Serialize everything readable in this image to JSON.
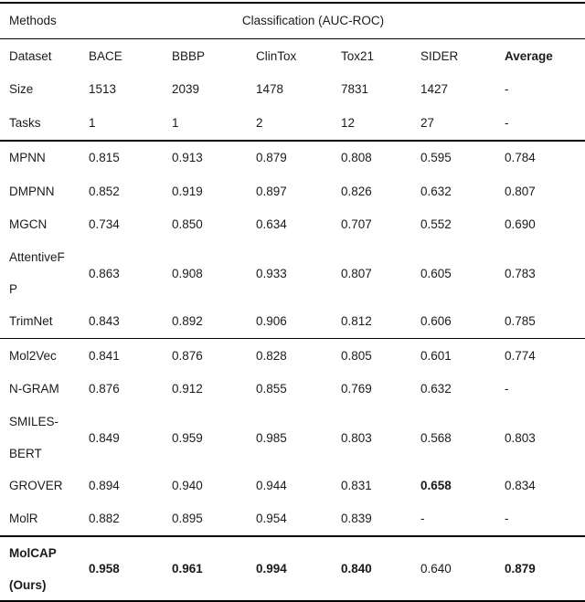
{
  "header": {
    "methods": "Methods",
    "classification": "Classification (AUC-ROC)"
  },
  "sections": [
    {
      "name": "dataset-info",
      "rows": [
        {
          "label_lines": [
            "Dataset"
          ],
          "cells": [
            {
              "t": "BACE"
            },
            {
              "t": "BBBP"
            },
            {
              "t": "ClinTox"
            },
            {
              "t": "Tox21"
            },
            {
              "t": "SIDER"
            },
            {
              "t": "Average",
              "b": true
            }
          ]
        },
        {
          "label_lines": [
            "Size"
          ],
          "cells": [
            {
              "t": "1513"
            },
            {
              "t": "2039"
            },
            {
              "t": "1478"
            },
            {
              "t": "7831"
            },
            {
              "t": "1427"
            },
            {
              "t": "-"
            }
          ]
        },
        {
          "label_lines": [
            "Tasks"
          ],
          "cells": [
            {
              "t": "1"
            },
            {
              "t": "1"
            },
            {
              "t": "2"
            },
            {
              "t": "12"
            },
            {
              "t": "27"
            },
            {
              "t": "-"
            }
          ]
        }
      ]
    },
    {
      "name": "supervised-graph-models",
      "rows": [
        {
          "label_lines": [
            "MPNN"
          ],
          "cells": [
            {
              "t": "0.815"
            },
            {
              "t": "0.913"
            },
            {
              "t": "0.879"
            },
            {
              "t": "0.808"
            },
            {
              "t": "0.595"
            },
            {
              "t": "0.784"
            }
          ]
        },
        {
          "label_lines": [
            "DMPNN"
          ],
          "cells": [
            {
              "t": "0.852"
            },
            {
              "t": "0.919"
            },
            {
              "t": "0.897"
            },
            {
              "t": "0.826"
            },
            {
              "t": "0.632"
            },
            {
              "t": "0.807"
            }
          ]
        },
        {
          "label_lines": [
            "MGCN"
          ],
          "cells": [
            {
              "t": "0.734"
            },
            {
              "t": "0.850"
            },
            {
              "t": "0.634"
            },
            {
              "t": "0.707"
            },
            {
              "t": "0.552"
            },
            {
              "t": "0.690"
            }
          ]
        },
        {
          "label_lines": [
            "AttentiveF",
            "P"
          ],
          "tall": true,
          "cells": [
            {
              "t": "0.863"
            },
            {
              "t": "0.908"
            },
            {
              "t": "0.933"
            },
            {
              "t": "0.807"
            },
            {
              "t": "0.605"
            },
            {
              "t": "0.783"
            }
          ]
        },
        {
          "label_lines": [
            "TrimNet"
          ],
          "cells": [
            {
              "t": "0.843"
            },
            {
              "t": "0.892"
            },
            {
              "t": "0.906"
            },
            {
              "t": "0.812"
            },
            {
              "t": "0.606"
            },
            {
              "t": "0.785"
            }
          ]
        }
      ]
    },
    {
      "name": "pretrained-models",
      "rows": [
        {
          "label_lines": [
            "Mol2Vec"
          ],
          "cells": [
            {
              "t": "0.841"
            },
            {
              "t": "0.876"
            },
            {
              "t": "0.828"
            },
            {
              "t": "0.805"
            },
            {
              "t": "0.601"
            },
            {
              "t": "0.774"
            }
          ]
        },
        {
          "label_lines": [
            "N-GRAM"
          ],
          "cells": [
            {
              "t": "0.876"
            },
            {
              "t": "0.912"
            },
            {
              "t": "0.855"
            },
            {
              "t": "0.769"
            },
            {
              "t": "0.632"
            },
            {
              "t": "-"
            }
          ]
        },
        {
          "label_lines": [
            "SMILES-",
            "BERT"
          ],
          "tall": true,
          "cells": [
            {
              "t": "0.849"
            },
            {
              "t": "0.959"
            },
            {
              "t": "0.985"
            },
            {
              "t": "0.803"
            },
            {
              "t": "0.568"
            },
            {
              "t": "0.803"
            }
          ]
        },
        {
          "label_lines": [
            "GROVER"
          ],
          "cells": [
            {
              "t": "0.894"
            },
            {
              "t": "0.940"
            },
            {
              "t": "0.944"
            },
            {
              "t": "0.831"
            },
            {
              "t": "0.658",
              "b": true
            },
            {
              "t": "0.834"
            }
          ]
        },
        {
          "label_lines": [
            "MolR"
          ],
          "cells": [
            {
              "t": "0.882"
            },
            {
              "t": "0.895"
            },
            {
              "t": "0.954"
            },
            {
              "t": "0.839"
            },
            {
              "t": "-"
            },
            {
              "t": "-"
            }
          ]
        }
      ]
    },
    {
      "name": "ours",
      "rows": [
        {
          "label_lines": [
            "MolCAP",
            "(Ours)"
          ],
          "tall": true,
          "label_bold": true,
          "cells": [
            {
              "t": "0.958",
              "b": true
            },
            {
              "t": "0.961",
              "b": true
            },
            {
              "t": "0.994",
              "b": true
            },
            {
              "t": "0.840",
              "b": true
            },
            {
              "t": "0.640"
            },
            {
              "t": "0.879",
              "b": true
            }
          ]
        }
      ]
    }
  ]
}
